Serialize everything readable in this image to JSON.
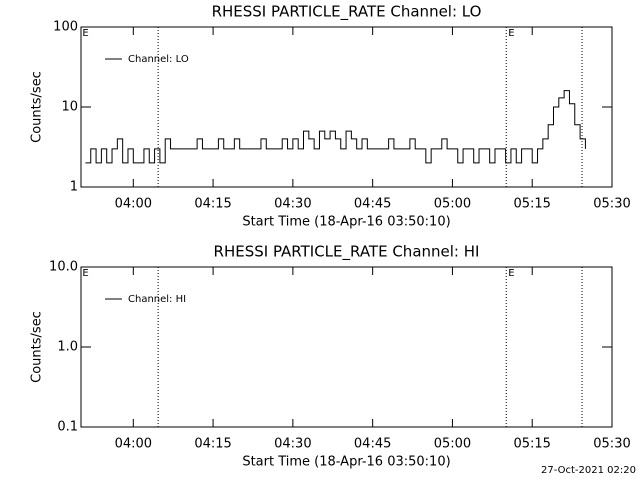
{
  "chart_data": [
    {
      "type": "line",
      "title": "RHESSI PARTICLE_RATE Channel: LO",
      "xlabel": "Start Time (18-Apr-16 03:50:10)",
      "ylabel": "Counts/sec",
      "log_y": true,
      "step": true,
      "legend": "upper left",
      "xlim": [
        "03:50:10",
        "05:30"
      ],
      "xticks": [
        "04:00",
        "04:15",
        "04:30",
        "04:45",
        "05:00",
        "05:15",
        "05:30"
      ],
      "ylim": [
        1,
        100
      ],
      "yticks": [
        1,
        10,
        100
      ],
      "vlines": [
        "04:04:40",
        "05:10:07",
        "05:24:22"
      ],
      "annotations": [
        {
          "x": "03:50:26",
          "text": "E"
        },
        {
          "x": "05:10:30",
          "text": "E"
        }
      ],
      "x": [
        "03:51",
        "03:52",
        "03:53",
        "03:54",
        "03:55",
        "03:56",
        "03:57",
        "03:58",
        "03:59",
        "04:00",
        "04:01",
        "04:02",
        "04:03",
        "04:04",
        "04:05",
        "04:06",
        "04:07",
        "04:08",
        "04:09",
        "04:10",
        "04:11",
        "04:12",
        "04:13",
        "04:14",
        "04:15",
        "04:16",
        "04:17",
        "04:18",
        "04:19",
        "04:20",
        "04:21",
        "04:22",
        "04:23",
        "04:24",
        "04:25",
        "04:26",
        "04:27",
        "04:28",
        "04:29",
        "04:30",
        "04:31",
        "04:32",
        "04:33",
        "04:34",
        "04:35",
        "04:36",
        "04:37",
        "04:38",
        "04:39",
        "04:40",
        "04:41",
        "04:42",
        "04:43",
        "04:44",
        "04:45",
        "04:46",
        "04:47",
        "04:48",
        "04:49",
        "04:50",
        "04:51",
        "04:52",
        "04:53",
        "04:54",
        "04:55",
        "04:56",
        "04:57",
        "04:58",
        "04:59",
        "05:00",
        "05:01",
        "05:02",
        "05:03",
        "05:04",
        "05:05",
        "05:06",
        "05:07",
        "05:08",
        "05:09",
        "05:10",
        "05:11",
        "05:12",
        "05:13",
        "05:14",
        "05:15",
        "05:16",
        "05:17",
        "05:18",
        "05:19",
        "05:20",
        "05:21",
        "05:22",
        "05:23",
        "05:24",
        "05:25"
      ],
      "series": [
        {
          "name": "Channel: LO",
          "color": "#000000",
          "values": [
            2,
            3,
            2,
            3,
            2,
            3,
            4,
            2,
            3,
            2,
            2,
            3,
            2,
            3,
            2,
            4,
            3,
            3,
            3,
            3,
            3,
            4,
            3,
            3,
            3,
            4,
            3,
            3,
            4,
            3,
            3,
            3,
            3,
            4,
            3,
            3,
            3,
            4,
            3,
            4,
            3,
            5,
            4,
            3,
            5,
            4,
            5,
            4,
            3,
            5,
            4,
            3,
            4,
            3,
            3,
            3,
            3,
            4,
            3,
            3,
            3,
            4,
            3,
            3,
            2,
            3,
            3,
            4,
            3,
            3,
            2,
            3,
            3,
            2,
            3,
            3,
            2,
            3,
            3,
            2,
            3,
            2,
            3,
            3,
            2,
            3,
            4,
            6,
            10,
            13,
            16,
            11,
            6,
            4,
            3
          ]
        }
      ]
    },
    {
      "type": "line",
      "title": "RHESSI PARTICLE_RATE Channel: HI",
      "xlabel": "Start Time (18-Apr-16 03:50:10)",
      "ylabel": "Counts/sec",
      "log_y": true,
      "step": true,
      "legend": "upper left",
      "xlim": [
        "03:50:10",
        "05:30"
      ],
      "xticks": [
        "04:00",
        "04:15",
        "04:30",
        "04:45",
        "05:00",
        "05:15",
        "05:30"
      ],
      "ylim": [
        0.1,
        10
      ],
      "yticks": [
        0.1,
        {
          "value": 1,
          "label": "1.0"
        },
        {
          "value": 10,
          "label": "10.0"
        }
      ],
      "vlines": [
        "04:04:40",
        "05:10:07",
        "05:24:22"
      ],
      "annotations": [
        {
          "x": "03:50:26",
          "text": "E"
        },
        {
          "x": "05:10:30",
          "text": "E"
        }
      ],
      "x": [],
      "series": [
        {
          "name": "Channel: HI",
          "color": "#000000",
          "values": []
        }
      ]
    }
  ],
  "footer": "27-Oct-2021 02:20"
}
